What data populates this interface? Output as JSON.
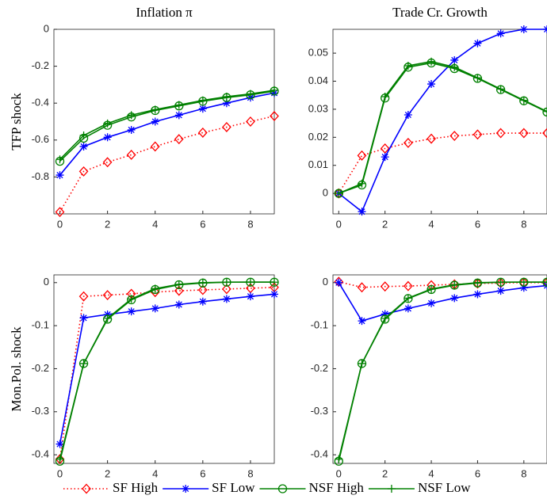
{
  "chart_data": [
    {
      "type": "line",
      "title": "Inflation π",
      "ylabel": "TFP shock",
      "x": [
        0,
        1,
        2,
        3,
        4,
        5,
        6,
        7,
        8,
        9
      ],
      "xlim": [
        -0.25,
        9
      ],
      "xticks": [
        0,
        2,
        4,
        6,
        8
      ],
      "ylim": [
        -1.0,
        0
      ],
      "yticks": [
        -0.8,
        -0.6,
        -0.4,
        -0.2,
        0
      ],
      "series": [
        {
          "name": "SF High",
          "color": "#ff0000",
          "marker": "diamond",
          "dash": "dotted",
          "values": [
            -0.99,
            -0.77,
            -0.72,
            -0.68,
            -0.635,
            -0.595,
            -0.56,
            -0.53,
            -0.5,
            -0.47
          ]
        },
        {
          "name": "SF Low",
          "color": "#0000ff",
          "marker": "asterisk",
          "dash": "solid",
          "values": [
            -0.79,
            -0.635,
            -0.585,
            -0.545,
            -0.5,
            -0.465,
            -0.43,
            -0.4,
            -0.37,
            -0.345
          ]
        },
        {
          "name": "NSF High",
          "color": "#008000",
          "marker": "circle",
          "dash": "solid",
          "values": [
            -0.715,
            -0.59,
            -0.52,
            -0.475,
            -0.44,
            -0.415,
            -0.39,
            -0.37,
            -0.355,
            -0.335
          ]
        },
        {
          "name": "NSF Low",
          "color": "#008000",
          "marker": "plus",
          "dash": "solid",
          "values": [
            -0.705,
            -0.575,
            -0.51,
            -0.465,
            -0.435,
            -0.41,
            -0.385,
            -0.365,
            -0.35,
            -0.33
          ]
        }
      ]
    },
    {
      "type": "line",
      "title": "Trade Cr. Growth",
      "x": [
        0,
        1,
        2,
        3,
        4,
        5,
        6,
        7,
        8,
        9
      ],
      "xlim": [
        -0.25,
        9
      ],
      "xticks": [
        0,
        2,
        4,
        6,
        8
      ],
      "ylim": [
        -0.0073,
        0.0585
      ],
      "yticks": [
        0,
        0.01,
        0.02,
        0.03,
        0.04,
        0.05
      ],
      "series": [
        {
          "color": "#ff0000",
          "marker": "diamond",
          "dash": "dotted",
          "values": [
            0,
            0.0135,
            0.016,
            0.018,
            0.0195,
            0.0205,
            0.021,
            0.0215,
            0.0215,
            0.0215
          ]
        },
        {
          "color": "#0000ff",
          "marker": "asterisk",
          "dash": "solid",
          "values": [
            0,
            -0.0065,
            0.013,
            0.028,
            0.039,
            0.0475,
            0.0535,
            0.057,
            0.0585,
            0.0585
          ]
        },
        {
          "color": "#008000",
          "marker": "circle",
          "dash": "solid",
          "values": [
            0,
            0.003,
            0.034,
            0.045,
            0.0465,
            0.0445,
            0.041,
            0.037,
            0.033,
            0.029
          ]
        },
        {
          "color": "#008000",
          "marker": "plus",
          "dash": "solid",
          "values": [
            0,
            0.0035,
            0.0345,
            0.0455,
            0.047,
            0.045,
            0.0412,
            0.0372,
            0.0332,
            0.0292
          ]
        }
      ]
    },
    {
      "type": "line",
      "ylabel": "Mon.Pol. shock",
      "x": [
        0,
        1,
        2,
        3,
        4,
        5,
        6,
        7,
        8,
        9
      ],
      "xlim": [
        -0.25,
        9
      ],
      "xticks": [
        0,
        2,
        4,
        6,
        8
      ],
      "ylim": [
        -0.42,
        0.018
      ],
      "yticks": [
        -0.4,
        -0.3,
        -0.2,
        -0.1,
        0
      ],
      "series": [
        {
          "color": "#ff0000",
          "marker": "diamond",
          "dash": "dotted",
          "values": [
            -0.41,
            -0.032,
            -0.029,
            -0.026,
            -0.022,
            -0.019,
            -0.017,
            -0.015,
            -0.013,
            -0.011
          ]
        },
        {
          "color": "#0000ff",
          "marker": "asterisk",
          "dash": "solid",
          "values": [
            -0.375,
            -0.082,
            -0.074,
            -0.067,
            -0.06,
            -0.051,
            -0.044,
            -0.038,
            -0.032,
            -0.027
          ]
        },
        {
          "color": "#008000",
          "marker": "circle",
          "dash": "solid",
          "values": [
            -0.415,
            -0.188,
            -0.085,
            -0.04,
            -0.016,
            -0.005,
            -0.001,
            0.001,
            0.001,
            0.001
          ]
        },
        {
          "color": "#008000",
          "marker": "plus",
          "dash": "solid",
          "values": [
            -0.41,
            -0.188,
            -0.083,
            -0.038,
            -0.014,
            -0.004,
            0,
            0.001,
            0.001,
            0.001
          ]
        }
      ]
    },
    {
      "type": "line",
      "x": [
        0,
        1,
        2,
        3,
        4,
        5,
        6,
        7,
        8,
        9
      ],
      "xlim": [
        -0.25,
        9
      ],
      "xticks": [
        0,
        2,
        4,
        6,
        8
      ],
      "ylim": [
        -0.42,
        0.018
      ],
      "yticks": [
        -0.4,
        -0.3,
        -0.2,
        -0.1,
        0
      ],
      "series": [
        {
          "color": "#ff0000",
          "marker": "diamond",
          "dash": "dotted",
          "values": [
            0.002,
            -0.011,
            -0.009,
            -0.008,
            -0.006,
            -0.004,
            -0.002,
            -0.001,
            0,
            0
          ]
        },
        {
          "color": "#0000ff",
          "marker": "asterisk",
          "dash": "solid",
          "values": [
            0,
            -0.089,
            -0.073,
            -0.06,
            -0.048,
            -0.036,
            -0.027,
            -0.019,
            -0.012,
            -0.007
          ]
        },
        {
          "color": "#008000",
          "marker": "circle",
          "dash": "solid",
          "values": [
            -0.415,
            -0.188,
            -0.085,
            -0.037,
            -0.016,
            -0.006,
            -0.001,
            0.001,
            0.001,
            0.001
          ]
        },
        {
          "color": "#008000",
          "marker": "plus",
          "dash": "solid",
          "values": [
            -0.41,
            -0.188,
            -0.083,
            -0.036,
            -0.015,
            -0.005,
            0,
            0.001,
            0.001,
            0.001
          ]
        }
      ]
    }
  ]
}
